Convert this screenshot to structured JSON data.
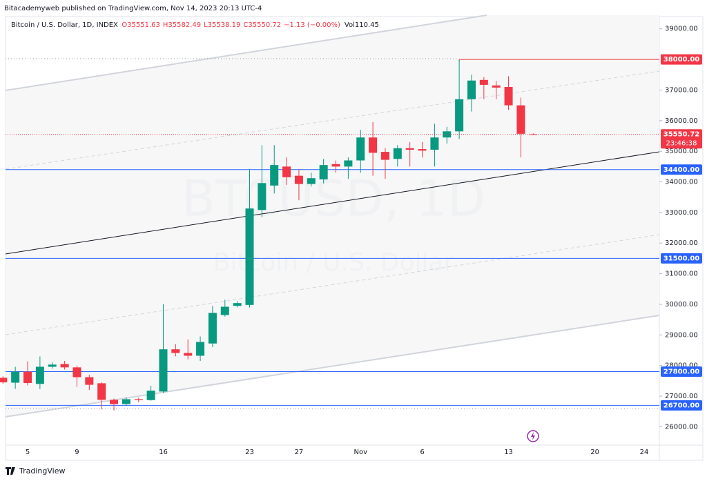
{
  "header": {
    "publisher": "Bitacademyweb published on TradingView.com, Nov 14, 2023 20:13 UTC-4",
    "symbol": "Bitcoin / U.S. Dollar, 1D, INDEX",
    "legend_values": [
      "O35551.63",
      "H35582.49",
      "L35538.19",
      "C35550.72",
      "−1.13 (−0.00%)"
    ],
    "volume": "Vol110.45"
  },
  "watermark": {
    "line1": "BTCUSD, 1D",
    "line2": "Bitcoin / U.S. Dollar"
  },
  "footer": "TradingView",
  "chart_data": {
    "type": "candlestick",
    "categories": [
      null,
      null,
      "5",
      null,
      null,
      null,
      "9",
      null,
      null,
      null,
      null,
      null,
      null,
      "16",
      null,
      null,
      null,
      null,
      null,
      null,
      "23",
      null,
      null,
      null,
      "27",
      null,
      null,
      null,
      null,
      "Nov",
      null,
      null,
      null,
      null,
      "6",
      null,
      null,
      null,
      null,
      null,
      null,
      "13",
      null,
      null,
      null,
      null,
      null,
      null,
      "20",
      null,
      null,
      null,
      "24",
      null
    ],
    "open": [
      27600,
      27440,
      27800,
      27400,
      27960,
      28050,
      27940,
      27620,
      27420,
      26880,
      26740,
      26900,
      26870,
      27150,
      28530,
      28410,
      28320,
      28720,
      29650,
      29950,
      29980,
      33080,
      33880,
      34500,
      34200,
      33930,
      34080,
      34580,
      34500,
      34700,
      35450,
      34980,
      34750,
      35100,
      35070,
      35050,
      35450,
      35650,
      36700,
      37330,
      37150,
      37100,
      36500,
      35551.63,
      null,
      null,
      null,
      null,
      null,
      null,
      null,
      null,
      null,
      null
    ],
    "high": [
      27650,
      27960,
      28140,
      28300,
      28100,
      28150,
      28000,
      27700,
      27450,
      26920,
      26960,
      26950,
      27340,
      30000,
      28700,
      28850,
      28950,
      29950,
      30150,
      30100,
      34400,
      35200,
      35200,
      34800,
      34400,
      34300,
      34750,
      34700,
      34800,
      35700,
      35950,
      35100,
      35200,
      35300,
      35300,
      35900,
      35800,
      37980,
      37500,
      37420,
      37300,
      37450,
      36750,
      35582.49,
      null,
      null,
      null,
      null,
      null,
      null,
      null,
      null,
      null,
      null
    ],
    "low": [
      27400,
      27240,
      27350,
      27230,
      27900,
      27870,
      27300,
      27200,
      26570,
      26530,
      26680,
      26800,
      26850,
      27100,
      28300,
      28200,
      28150,
      28600,
      29600,
      29900,
      29900,
      32850,
      33620,
      33900,
      33400,
      33850,
      33950,
      34300,
      34100,
      34300,
      34200,
      34100,
      34500,
      34500,
      34800,
      34500,
      35250,
      35400,
      36300,
      36700,
      36700,
      36350,
      34800,
      35538.19,
      null,
      null,
      null,
      null,
      null,
      null,
      null,
      null,
      null,
      null
    ],
    "close": [
      27450,
      27800,
      27430,
      27960,
      28030,
      27940,
      27620,
      27370,
      26880,
      26740,
      26900,
      26870,
      27180,
      28530,
      28410,
      28320,
      28770,
      29720,
      29920,
      30040,
      33130,
      33960,
      34550,
      34150,
      33930,
      34120,
      34550,
      34500,
      34700,
      35450,
      34950,
      34720,
      35100,
      35050,
      35020,
      35450,
      35650,
      36700,
      37310,
      37170,
      37080,
      36500,
      35570,
      35550.72,
      null,
      null,
      null,
      null,
      null,
      null,
      null,
      null,
      null,
      null
    ],
    "up_color": "#089981",
    "down_color": "#f23645",
    "ylim": [
      25400,
      39400
    ],
    "yticks": [
      {
        "value": 26000,
        "label": "26000.00"
      },
      {
        "value": 27000,
        "label": "27000.00"
      },
      {
        "value": 28000,
        "label": "28000.00"
      },
      {
        "value": 29000,
        "label": "29000.00"
      },
      {
        "value": 30000,
        "label": "30000.00"
      },
      {
        "value": 31000,
        "label": "31000.00"
      },
      {
        "value": 32000,
        "label": "32000.00"
      },
      {
        "value": 33000,
        "label": "33000.00"
      },
      {
        "value": 34000,
        "label": "34000.00"
      },
      {
        "value": 35000,
        "label": "35000.00"
      },
      {
        "value": 36000,
        "label": "36000.00"
      },
      {
        "value": 37000,
        "label": "37000.00"
      },
      {
        "value": 39000,
        "label": "39000.00"
      }
    ],
    "levels": [
      {
        "value": 38000,
        "label": "38000.00",
        "color": "#f23645"
      },
      {
        "value": 34400,
        "label": "34400.00",
        "color": "#2962ff"
      },
      {
        "value": 31500,
        "label": "31500.00",
        "color": "#2962ff"
      },
      {
        "value": 27800,
        "label": "27800.00",
        "color": "#2962ff"
      },
      {
        "value": 26700,
        "label": "26700.00",
        "color": "#2962ff"
      }
    ],
    "last_price": {
      "value": 35550.72,
      "label": "35550.72",
      "countdown": "23:46:38",
      "color": "#f23645"
    }
  }
}
